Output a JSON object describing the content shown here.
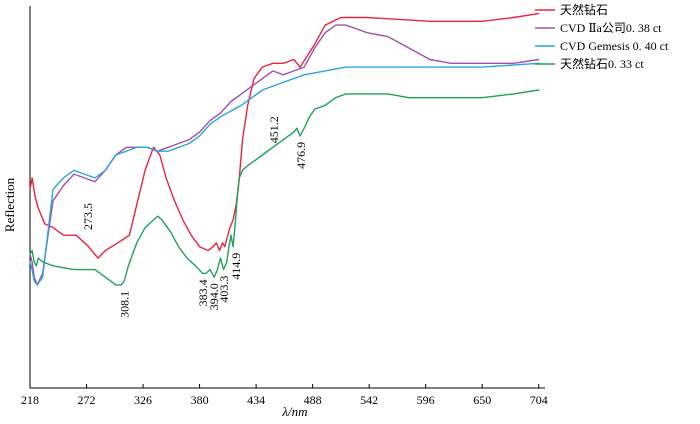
{
  "chart_data": {
    "type": "line",
    "title": "",
    "xlabel": "λ/nm",
    "ylabel": "Reflection",
    "xlim": [
      218,
      710
    ],
    "xticks": [
      218,
      272,
      326,
      380,
      434,
      488,
      542,
      596,
      650,
      704
    ],
    "ylim": [
      0,
      100
    ],
    "legend_position": "top-right",
    "series": [
      {
        "name": "天然钻石",
        "color": "#e8263e",
        "x": [
          218,
          220,
          223,
          226,
          232,
          240,
          250,
          262,
          274,
          283,
          290,
          302,
          313,
          320,
          328,
          336,
          342,
          348,
          356,
          364,
          372,
          380,
          388,
          393,
          396,
          399,
          402,
          404,
          406,
          409,
          412,
          415,
          418,
          421,
          426,
          432,
          440,
          450,
          460,
          470,
          476,
          483,
          490,
          500,
          515,
          540,
          600,
          650,
          680,
          704
        ],
        "y": [
          52,
          55,
          50,
          47,
          43,
          42,
          40,
          40,
          37,
          34,
          36,
          38,
          40,
          48,
          57,
          63,
          61,
          55,
          49,
          44,
          40,
          37,
          36,
          37,
          38,
          36,
          38,
          37,
          39,
          42,
          44,
          48,
          55,
          65,
          74,
          81,
          84,
          85,
          85,
          86,
          84,
          87,
          90,
          95,
          97,
          97,
          96,
          96,
          97,
          98
        ]
      },
      {
        "name": "CVD  Ⅱa公司0. 38 ct",
        "color": "#a24fae",
        "x": [
          218,
          220,
          222,
          225,
          230,
          240,
          250,
          260,
          270,
          280,
          290,
          300,
          310,
          320,
          330,
          340,
          350,
          360,
          370,
          380,
          390,
          400,
          410,
          420,
          430,
          440,
          450,
          460,
          470,
          480,
          490,
          500,
          510,
          520,
          540,
          560,
          580,
          600,
          620,
          650,
          680,
          704
        ],
        "y": [
          35,
          33,
          29,
          27,
          30,
          49,
          53,
          56,
          55,
          54,
          57,
          61,
          63,
          63,
          63,
          62,
          63,
          64,
          65,
          67,
          70,
          72,
          75,
          77,
          79,
          81,
          83,
          82,
          83,
          84,
          89,
          93,
          95,
          95,
          93,
          92,
          89,
          86,
          85,
          85,
          85,
          86
        ]
      },
      {
        "name": "CVD  Gemesis  0. 40 ct",
        "color": "#2ba6dd",
        "x": [
          218,
          220,
          222,
          225,
          230,
          240,
          250,
          260,
          270,
          280,
          290,
          300,
          310,
          320,
          330,
          340,
          350,
          360,
          370,
          380,
          390,
          400,
          420,
          440,
          460,
          480,
          500,
          520,
          540,
          560,
          600,
          650,
          704
        ],
        "y": [
          33,
          31,
          28,
          27,
          29,
          52,
          55,
          57,
          56,
          55,
          57,
          61,
          62,
          63,
          63,
          62,
          62,
          63,
          64,
          66,
          69,
          71,
          74,
          78,
          80,
          82,
          83,
          84,
          84,
          84,
          84,
          84,
          85
        ]
      },
      {
        "name": "天然钻石0. 33 ct",
        "color": "#22a05a",
        "x": [
          218,
          220,
          222,
          224,
          226,
          230,
          240,
          260,
          270,
          280,
          290,
          300,
          305,
          308,
          312,
          320,
          328,
          336,
          340,
          344,
          352,
          360,
          368,
          376,
          383,
          386,
          390,
          394,
          397,
          400,
          403,
          406,
          408,
          410,
          412,
          414,
          416,
          418,
          421,
          425,
          430,
          440,
          450,
          460,
          470,
          473,
          476,
          480,
          485,
          490,
          500,
          510,
          520,
          540,
          560,
          580,
          600,
          650,
          680,
          704
        ],
        "y": [
          35,
          36,
          33,
          32,
          34,
          33,
          32,
          31,
          31,
          31,
          29,
          27,
          27,
          28,
          32,
          38,
          42,
          44,
          45,
          44,
          41,
          37,
          34,
          32,
          30,
          30,
          31,
          29,
          31,
          34,
          31,
          33,
          37,
          40,
          37,
          43,
          50,
          55,
          57,
          58,
          59,
          61,
          63,
          65,
          67,
          68,
          66,
          68,
          71,
          73,
          74,
          76,
          77,
          77,
          77,
          76,
          76,
          76,
          77,
          78
        ]
      }
    ],
    "annotations": [
      {
        "text": "273.5",
        "x": 273.5,
        "y": 50,
        "side": "below"
      },
      {
        "text": "308.1",
        "x": 308.1,
        "y": 27,
        "side": "below"
      },
      {
        "text": "383.4",
        "x": 383.4,
        "y": 30,
        "side": "below"
      },
      {
        "text": "394.0",
        "x": 394.0,
        "y": 29,
        "side": "below"
      },
      {
        "text": "403.3",
        "x": 403.3,
        "y": 31,
        "side": "below"
      },
      {
        "text": "414.9",
        "x": 414.9,
        "y": 37,
        "side": "below"
      },
      {
        "text": "451.2",
        "x": 451.2,
        "y": 63,
        "side": "above"
      },
      {
        "text": "476.9",
        "x": 476.9,
        "y": 66,
        "side": "below"
      }
    ]
  }
}
